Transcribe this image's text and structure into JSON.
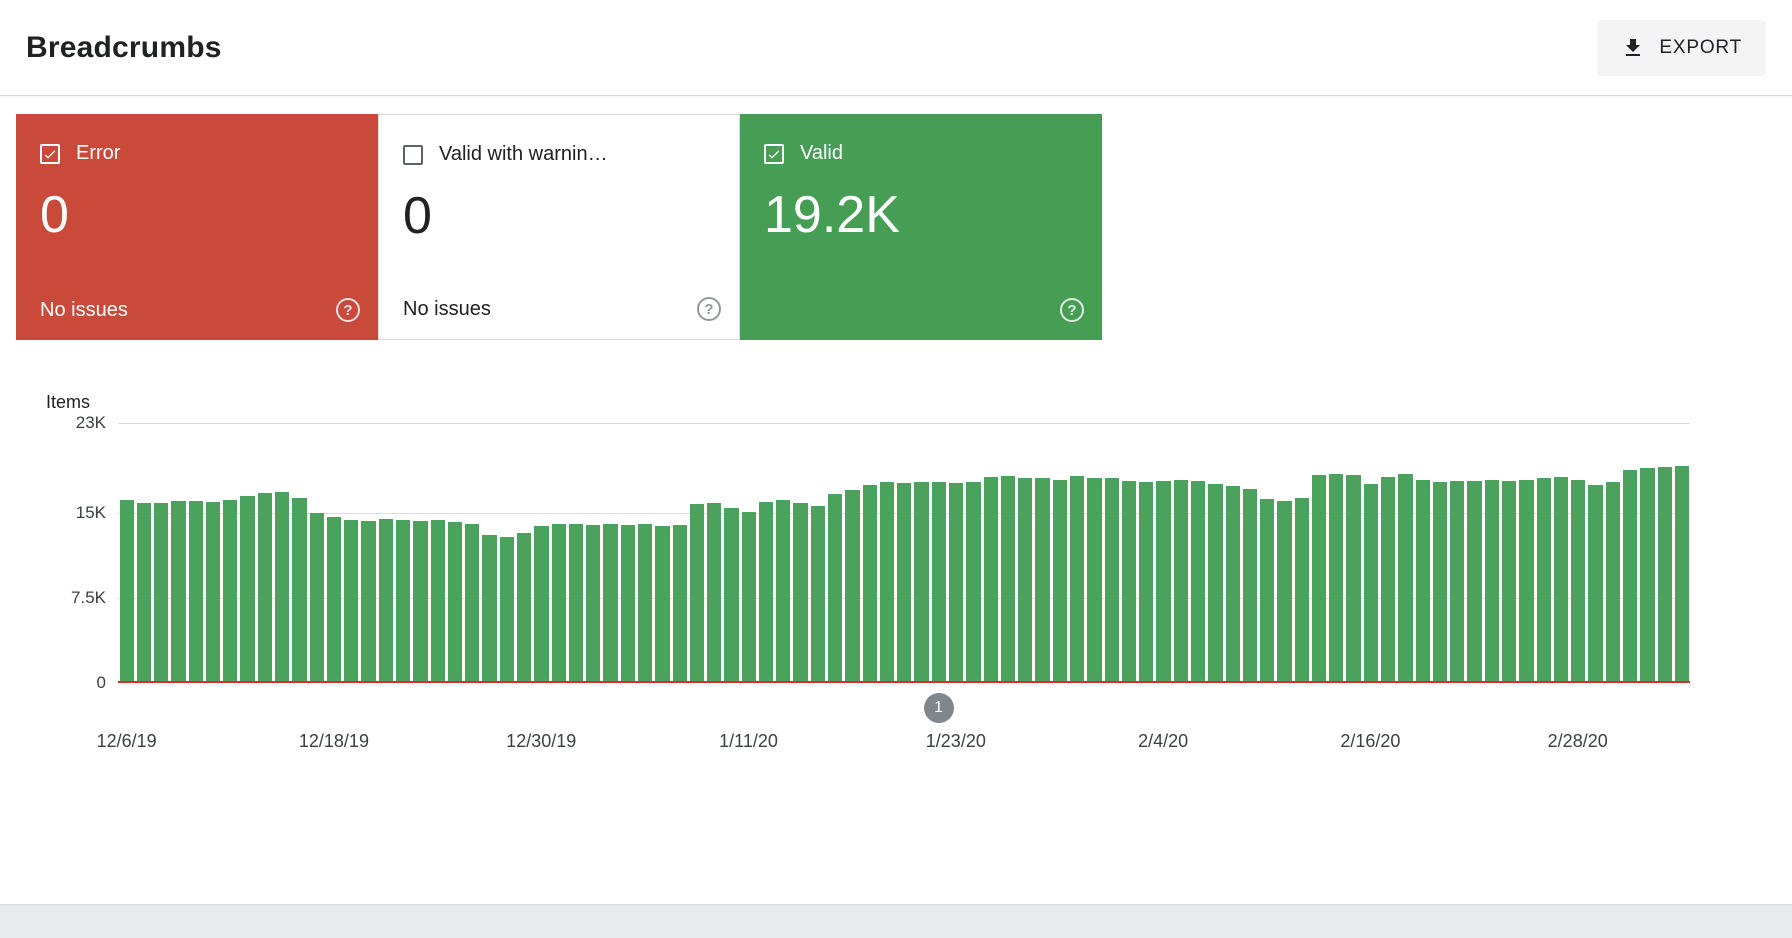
{
  "header": {
    "title": "Breadcrumbs",
    "export_label": "EXPORT"
  },
  "cards": {
    "error": {
      "label": "Error",
      "value": "0",
      "sub": "No issues",
      "checked": true
    },
    "warning": {
      "label": "Valid with warnin…",
      "value": "0",
      "sub": "No issues",
      "checked": false
    },
    "valid": {
      "label": "Valid",
      "value": "19.2K",
      "checked": true
    }
  },
  "colors": {
    "error_red": "#c9493a",
    "valid_green": "#459e54",
    "bar_green": "#4aa25c",
    "zero_line_red": "#d93025",
    "grid": "#dadce0",
    "marker_gray": "#80868b"
  },
  "chart_data": {
    "type": "bar",
    "title": "Items",
    "series_name": "Valid",
    "ylabel": "Items",
    "ylim": [
      0,
      23000
    ],
    "grid": true,
    "legend": "none",
    "y_ticks": [
      {
        "label": "23K",
        "value": 23000
      },
      {
        "label": "15K",
        "value": 15000
      },
      {
        "label": "7.5K",
        "value": 7500
      },
      {
        "label": "0",
        "value": 0
      }
    ],
    "x_ticks": [
      {
        "label": "12/6/19",
        "day": 0
      },
      {
        "label": "12/18/19",
        "day": 12
      },
      {
        "label": "12/30/19",
        "day": 24
      },
      {
        "label": "1/11/20",
        "day": 36
      },
      {
        "label": "1/23/20",
        "day": 48
      },
      {
        "label": "2/4/20",
        "day": 60
      },
      {
        "label": "2/16/20",
        "day": 72
      },
      {
        "label": "2/28/20",
        "day": 84
      }
    ],
    "annotation": {
      "label": "1",
      "day": 47
    },
    "x": [
      "12/6/19",
      "12/7/19",
      "12/8/19",
      "12/9/19",
      "12/10/19",
      "12/11/19",
      "12/12/19",
      "12/13/19",
      "12/14/19",
      "12/15/19",
      "12/16/19",
      "12/17/19",
      "12/18/19",
      "12/19/19",
      "12/20/19",
      "12/21/19",
      "12/22/19",
      "12/23/19",
      "12/24/19",
      "12/25/19",
      "12/26/19",
      "12/27/19",
      "12/28/19",
      "12/29/19",
      "12/30/19",
      "12/31/19",
      "1/1/20",
      "1/2/20",
      "1/3/20",
      "1/4/20",
      "1/5/20",
      "1/6/20",
      "1/7/20",
      "1/8/20",
      "1/9/20",
      "1/10/20",
      "1/11/20",
      "1/12/20",
      "1/13/20",
      "1/14/20",
      "1/15/20",
      "1/16/20",
      "1/17/20",
      "1/18/20",
      "1/19/20",
      "1/20/20",
      "1/21/20",
      "1/22/20",
      "1/23/20",
      "1/24/20",
      "1/25/20",
      "1/26/20",
      "1/27/20",
      "1/28/20",
      "1/29/20",
      "1/30/20",
      "1/31/20",
      "2/1/20",
      "2/2/20",
      "2/3/20",
      "2/4/20",
      "2/5/20",
      "2/6/20",
      "2/7/20",
      "2/8/20",
      "2/9/20",
      "2/10/20",
      "2/11/20",
      "2/12/20",
      "2/13/20",
      "2/14/20",
      "2/15/20",
      "2/16/20",
      "2/17/20",
      "2/18/20",
      "2/19/20",
      "2/20/20",
      "2/21/20",
      "2/22/20",
      "2/23/20",
      "2/24/20",
      "2/25/20",
      "2/26/20",
      "2/27/20",
      "2/28/20",
      "2/29/20",
      "3/1/20",
      "3/2/20",
      "3/3/20",
      "3/4/20",
      "3/5/20"
    ],
    "values": [
      16200,
      15900,
      15900,
      16100,
      16100,
      16000,
      16200,
      16500,
      16800,
      16900,
      16400,
      15000,
      14700,
      14400,
      14300,
      14500,
      14400,
      14300,
      14400,
      14200,
      14100,
      13100,
      12900,
      13300,
      13900,
      14100,
      14100,
      14000,
      14100,
      14000,
      14100,
      13900,
      14000,
      15800,
      15900,
      15500,
      15100,
      16000,
      16200,
      15900,
      15700,
      16700,
      17100,
      17500,
      17800,
      17700,
      17800,
      17800,
      17700,
      17800,
      18200,
      18300,
      18100,
      18100,
      18000,
      18300,
      18100,
      18100,
      17900,
      17800,
      17900,
      18000,
      17900,
      17600,
      17400,
      17200,
      16300,
      16100,
      16400,
      18400,
      18500,
      18400,
      17600,
      18200,
      18500,
      18000,
      17800,
      17900,
      17900,
      18000,
      17900,
      18000,
      18100,
      18200,
      18000,
      17500,
      17800,
      18800,
      19000,
      19100,
      19200
    ]
  }
}
